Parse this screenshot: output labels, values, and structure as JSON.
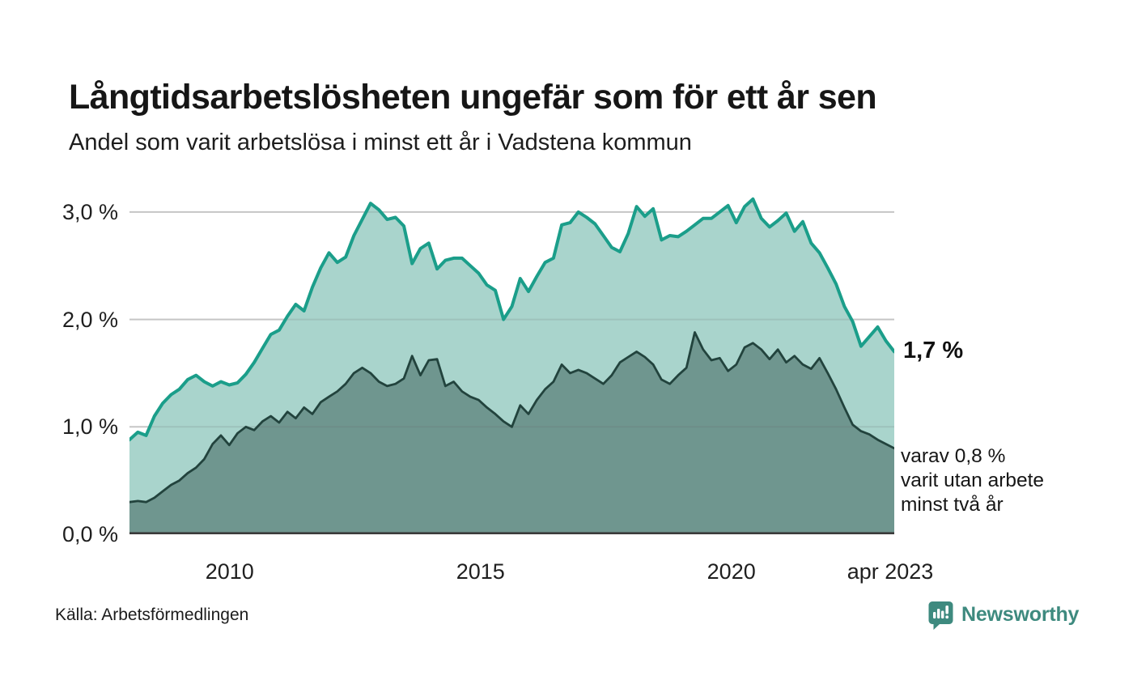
{
  "header": {
    "title": "Långtidsarbetslösheten ungefär som för ett år sen",
    "subtitle": "Andel som varit arbetslösa i minst ett år i Vadstena kommun"
  },
  "colors": {
    "series1_line": "#1b9e8a",
    "series1_fill": "#a9d4cc",
    "series2_line": "#22433d",
    "series2_fill": "#6f968f",
    "grid": "#d9d9d9",
    "grid_overlay": "rgba(100,100,100,0.16)",
    "axis": "#3b3b3b",
    "brand_teal": "#3e8a7f"
  },
  "chart_data": {
    "type": "area",
    "title": "Långtidsarbetslösheten ungefär som för ett år sen",
    "subtitle": "Andel som varit arbetslösa i minst ett år i Vadstena kommun",
    "unit": "%",
    "ylim": [
      0,
      3.24
    ],
    "grid": "horizontal",
    "y_ticks": [
      {
        "value": 0.0,
        "label": "0,0 %"
      },
      {
        "value": 1.0,
        "label": "1,0 %"
      },
      {
        "value": 2.0,
        "label": "2,0 %"
      },
      {
        "value": 3.0,
        "label": "3,0 %"
      }
    ],
    "x_ticks": [
      {
        "label": "2010",
        "pos": 0.131
      },
      {
        "label": "2015",
        "pos": 0.459
      },
      {
        "label": "2020",
        "pos": 0.787
      },
      {
        "label": "apr 2023",
        "pos": 0.9947
      }
    ],
    "x_range_note": "monthly values, axis labeled 2010–apr 2023",
    "series": [
      {
        "name": "minst ett år",
        "color_key": "series1",
        "end_label": "1,7 %",
        "end_value": 1.7,
        "values": [
          0.88,
          0.95,
          0.92,
          1.1,
          1.22,
          1.3,
          1.35,
          1.44,
          1.48,
          1.42,
          1.38,
          1.42,
          1.39,
          1.41,
          1.49,
          1.6,
          1.73,
          1.86,
          1.9,
          2.03,
          2.14,
          2.08,
          2.3,
          2.48,
          2.62,
          2.53,
          2.58,
          2.78,
          2.93,
          3.08,
          3.02,
          2.93,
          2.95,
          2.87,
          2.52,
          2.66,
          2.71,
          2.47,
          2.55,
          2.57,
          2.57,
          2.5,
          2.43,
          2.32,
          2.27,
          2.0,
          2.12,
          2.38,
          2.26,
          2.4,
          2.53,
          2.57,
          2.88,
          2.9,
          3.0,
          2.95,
          2.89,
          2.78,
          2.67,
          2.63,
          2.8,
          3.05,
          2.96,
          3.03,
          2.74,
          2.78,
          2.77,
          2.82,
          2.88,
          2.94,
          2.94,
          3.0,
          3.06,
          2.9,
          3.05,
          3.12,
          2.94,
          2.86,
          2.92,
          2.99,
          2.82,
          2.91,
          2.71,
          2.62,
          2.48,
          2.33,
          2.12,
          1.98,
          1.75,
          1.84,
          1.93,
          1.8,
          1.7
        ]
      },
      {
        "name": "minst två år",
        "color_key": "series2",
        "end_label_lines": [
          "varav 0,8 %",
          "varit utan arbete",
          "minst två år"
        ],
        "end_value": 0.8,
        "values": [
          0.3,
          0.31,
          0.3,
          0.34,
          0.4,
          0.46,
          0.5,
          0.57,
          0.62,
          0.7,
          0.84,
          0.92,
          0.83,
          0.94,
          1.0,
          0.97,
          1.05,
          1.1,
          1.04,
          1.14,
          1.08,
          1.18,
          1.12,
          1.23,
          1.28,
          1.33,
          1.4,
          1.5,
          1.55,
          1.5,
          1.42,
          1.38,
          1.4,
          1.45,
          1.66,
          1.48,
          1.62,
          1.63,
          1.38,
          1.42,
          1.33,
          1.28,
          1.25,
          1.18,
          1.12,
          1.05,
          1.0,
          1.2,
          1.12,
          1.25,
          1.35,
          1.42,
          1.58,
          1.5,
          1.53,
          1.5,
          1.45,
          1.4,
          1.48,
          1.6,
          1.65,
          1.7,
          1.65,
          1.58,
          1.44,
          1.4,
          1.48,
          1.55,
          1.88,
          1.72,
          1.62,
          1.64,
          1.52,
          1.58,
          1.74,
          1.78,
          1.72,
          1.63,
          1.72,
          1.6,
          1.66,
          1.58,
          1.54,
          1.64,
          1.5,
          1.35,
          1.18,
          1.02,
          0.96,
          0.93,
          0.88,
          0.84,
          0.8
        ]
      }
    ]
  },
  "footer": {
    "source": "Källa: Arbetsförmedlingen",
    "brand": "Newsworthy"
  }
}
